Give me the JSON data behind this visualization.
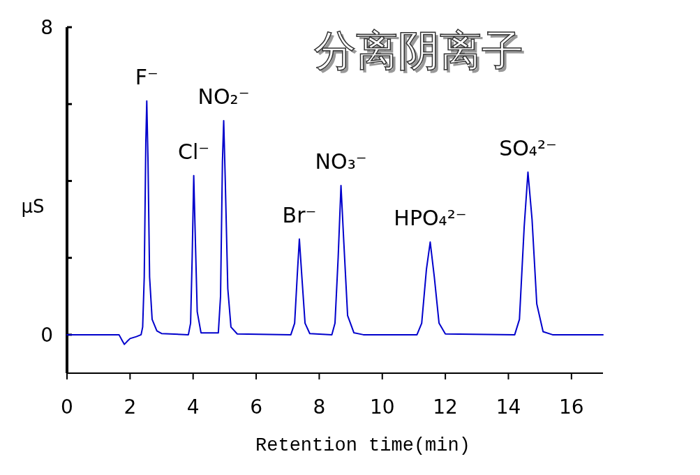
{
  "chart_data": {
    "type": "line",
    "title": "分离阴离子",
    "xlabel": "Retention time(min)",
    "ylabel": "μS",
    "xlim": [
      0,
      17
    ],
    "xticks": [
      0,
      2,
      4,
      6,
      8,
      10,
      12,
      14,
      16
    ],
    "ylim": [
      -1,
      8
    ],
    "yticks": [
      0,
      {
        "value": 2,
        "label": null
      },
      {
        "value": 4,
        "label": null
      },
      {
        "value": 6,
        "label": null
      },
      8
    ],
    "series": [
      {
        "color": "#0000cc",
        "x": [
          0,
          1.65,
          1.75,
          1.82,
          1.9,
          2.0,
          2.2,
          2.35,
          2.4,
          2.45,
          2.5,
          2.53,
          2.57,
          2.62,
          2.7,
          2.85,
          3.0,
          3.85,
          3.92,
          3.97,
          4.02,
          4.07,
          4.13,
          4.25,
          4.8,
          4.87,
          4.93,
          4.97,
          5.02,
          5.1,
          5.2,
          5.4,
          7.1,
          7.22,
          7.3,
          7.37,
          7.45,
          7.55,
          7.7,
          8.4,
          8.5,
          8.6,
          8.69,
          8.78,
          8.9,
          9.1,
          9.4,
          11.1,
          11.25,
          11.4,
          11.52,
          11.65,
          11.8,
          12.0,
          14.2,
          14.35,
          14.5,
          14.62,
          14.75,
          14.9,
          15.1,
          15.4,
          17
        ],
        "values": [
          0,
          0,
          -0.15,
          -0.25,
          -0.18,
          -0.1,
          -0.05,
          0,
          0.2,
          1.5,
          5.0,
          6.08,
          4.5,
          1.5,
          0.4,
          0.1,
          0.03,
          0,
          0.3,
          2.0,
          4.14,
          2.5,
          0.6,
          0.05,
          0.05,
          1.0,
          4.5,
          5.57,
          4.0,
          1.2,
          0.2,
          0.02,
          0,
          0.3,
          1.5,
          2.49,
          1.5,
          0.3,
          0.03,
          0,
          0.3,
          2.0,
          3.88,
          2.4,
          0.5,
          0.05,
          0,
          0,
          0.3,
          1.7,
          2.41,
          1.5,
          0.3,
          0.02,
          0,
          0.4,
          2.8,
          4.23,
          3.0,
          0.8,
          0.08,
          0,
          0
        ]
      }
    ],
    "annotations": [
      {
        "text": "F⁻",
        "x": 2.53,
        "y": 6.08
      },
      {
        "text": "Cl⁻",
        "x": 4.02,
        "y": 4.14
      },
      {
        "text": "NO₂⁻",
        "x": 4.97,
        "y": 5.57
      },
      {
        "text": "Br⁻",
        "x": 7.37,
        "y": 2.49
      },
      {
        "text": "NO₃⁻",
        "x": 8.69,
        "y": 3.88
      },
      {
        "text": "HPO₄²⁻",
        "x": 11.52,
        "y": 2.41
      },
      {
        "text": "SO₄²⁻",
        "x": 14.62,
        "y": 4.23
      }
    ]
  }
}
